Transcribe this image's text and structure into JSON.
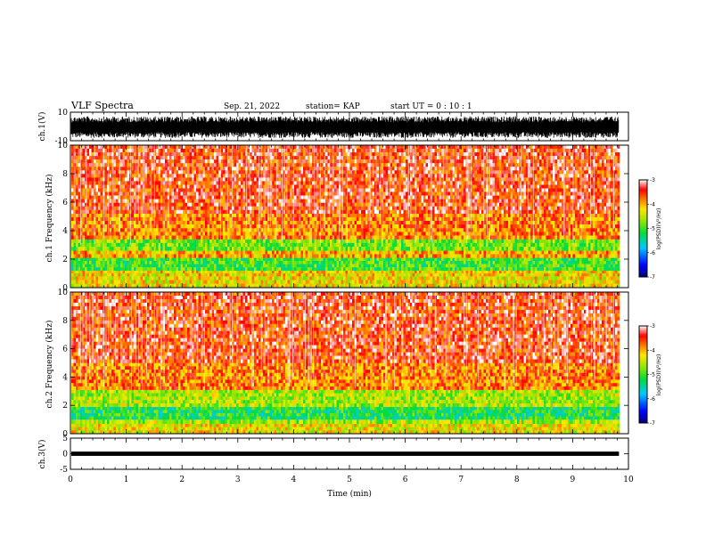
{
  "header": {
    "title": "VLF Spectra",
    "date": "Sep. 21, 2022",
    "station": "station= KAP",
    "start": "start  UT =   0  : 10 : 1"
  },
  "chart_data": [
    {
      "type": "line",
      "panel": "ch1-waveform",
      "ylabel": "ch.1(V)",
      "ylim": [
        -10,
        10
      ],
      "ytick_labels": [
        "10",
        "-10"
      ],
      "xlim": [
        0,
        10
      ],
      "data_span": [
        0,
        9.83
      ],
      "trace_band": [
        -8,
        7
      ],
      "color": "#000000"
    },
    {
      "type": "heatmap",
      "panel": "ch1-spectrogram",
      "ylabel": "ch.1  Frequency  (kHz)",
      "ylim": [
        0,
        10
      ],
      "ytick_labels": [
        "0",
        "2",
        "4",
        "6",
        "8",
        "10"
      ],
      "xlim": [
        0,
        10
      ],
      "data_span": [
        0,
        9.83
      ],
      "colorbar": {
        "label": "log(PSD)(V²/Hz)",
        "range": [
          -7,
          -3
        ],
        "tick_labels": [
          "-3",
          "-4",
          "-5",
          "-6",
          "-7"
        ]
      },
      "bands_khz": [
        {
          "from": 0.0,
          "to": 0.8,
          "level": -4.3
        },
        {
          "from": 0.8,
          "to": 1.2,
          "level": -4.2
        },
        {
          "from": 1.2,
          "to": 2.1,
          "level": -5.0
        },
        {
          "from": 2.1,
          "to": 2.6,
          "level": -4.0
        },
        {
          "from": 2.6,
          "to": 3.4,
          "level": -4.8
        },
        {
          "from": 3.4,
          "to": 5.2,
          "level": -3.8
        },
        {
          "from": 5.2,
          "to": 10.0,
          "level": -3.5
        }
      ]
    },
    {
      "type": "heatmap",
      "panel": "ch2-spectrogram",
      "ylabel": "ch.2  Frequency  (kHz)",
      "ylim": [
        0,
        10
      ],
      "ytick_labels": [
        "0",
        "2",
        "4",
        "6",
        "8",
        "10"
      ],
      "xlim": [
        0,
        10
      ],
      "data_span": [
        0,
        9.83
      ],
      "colorbar": {
        "label": "log(PSD)(V²/Hz)",
        "range": [
          -7,
          -3
        ],
        "tick_labels": [
          "-3",
          "-4",
          "-5",
          "-6",
          "-7"
        ]
      },
      "bands_khz": [
        {
          "from": 0.0,
          "to": 0.7,
          "level": -4.3
        },
        {
          "from": 0.7,
          "to": 1.0,
          "level": -4.6
        },
        {
          "from": 1.0,
          "to": 1.9,
          "level": -5.2
        },
        {
          "from": 1.9,
          "to": 3.1,
          "level": -4.6
        },
        {
          "from": 3.1,
          "to": 5.0,
          "level": -3.8
        },
        {
          "from": 5.0,
          "to": 10.0,
          "level": -3.5
        }
      ]
    },
    {
      "type": "line",
      "panel": "ch3-waveform",
      "ylabel": "ch.3(V)",
      "ylim": [
        -5,
        5
      ],
      "ytick_labels": [
        "5",
        "0",
        "-5"
      ],
      "xlim": [
        0,
        10
      ],
      "data_span": [
        0,
        9.83
      ],
      "trace_band": [
        -0.4,
        0.4
      ],
      "color": "#000000"
    }
  ],
  "x_axis": {
    "label": "Time  (min)",
    "tick_labels": [
      "0",
      "1",
      "2",
      "3",
      "4",
      "5",
      "6",
      "7",
      "8",
      "9",
      "10"
    ]
  }
}
